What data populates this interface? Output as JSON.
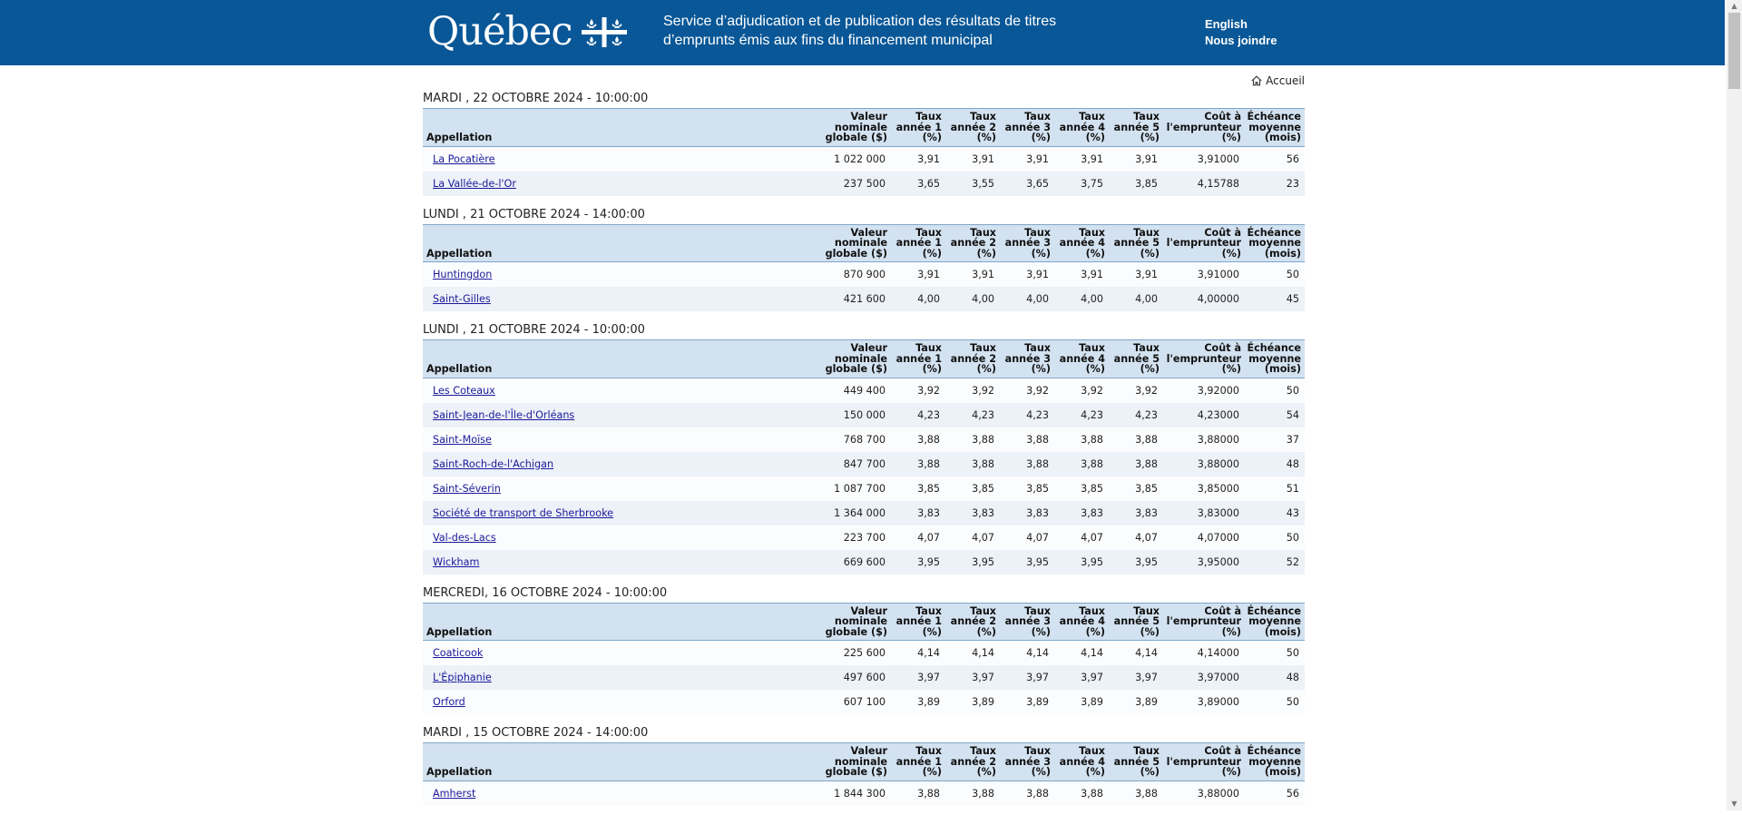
{
  "header": {
    "logo_text": "Québec",
    "service_title": "Service d’adjudication et de publication des résultats de titres d’emprunts émis aux fins du financement municipal",
    "lang_link": "English",
    "contact_link": "Nous joindre"
  },
  "nav": {
    "home": "Accueil"
  },
  "columns": [
    {
      "label": "Appellation"
    },
    {
      "label": "Valeur nominale globale ($)"
    },
    {
      "label": "Taux année 1 (%)"
    },
    {
      "label": "Taux année 2 (%)"
    },
    {
      "label": "Taux année 3 (%)"
    },
    {
      "label": "Taux année 4 (%)"
    },
    {
      "label": "Taux année 5 (%)"
    },
    {
      "label": "Coût à l'emprunteur (%)"
    },
    {
      "label": "Échéance moyenne (mois)"
    }
  ],
  "sections": [
    {
      "title": "MARDI , 22 OCTOBRE 2024 - 10:00:00",
      "rows": [
        {
          "name": "La Pocatière",
          "cells": [
            "1 022 000",
            "3,91",
            "3,91",
            "3,91",
            "3,91",
            "3,91",
            "3,91000",
            "56"
          ]
        },
        {
          "name": "La Vallée-de-l'Or",
          "cells": [
            "237 500",
            "3,65",
            "3,55",
            "3,65",
            "3,75",
            "3,85",
            "4,15788",
            "23"
          ]
        }
      ]
    },
    {
      "title": "LUNDI , 21 OCTOBRE 2024 - 14:00:00",
      "rows": [
        {
          "name": "Huntingdon",
          "cells": [
            "870 900",
            "3,91",
            "3,91",
            "3,91",
            "3,91",
            "3,91",
            "3,91000",
            "50"
          ]
        },
        {
          "name": "Saint-Gilles",
          "cells": [
            "421 600",
            "4,00",
            "4,00",
            "4,00",
            "4,00",
            "4,00",
            "4,00000",
            "45"
          ]
        }
      ]
    },
    {
      "title": "LUNDI , 21 OCTOBRE 2024 - 10:00:00",
      "rows": [
        {
          "name": "Les Coteaux",
          "cells": [
            "449 400",
            "3,92",
            "3,92",
            "3,92",
            "3,92",
            "3,92",
            "3,92000",
            "50"
          ]
        },
        {
          "name": "Saint-Jean-de-l'Île-d'Orléans",
          "cells": [
            "150 000",
            "4,23",
            "4,23",
            "4,23",
            "4,23",
            "4,23",
            "4,23000",
            "54"
          ]
        },
        {
          "name": "Saint-Moïse",
          "cells": [
            "768 700",
            "3,88",
            "3,88",
            "3,88",
            "3,88",
            "3,88",
            "3,88000",
            "37"
          ]
        },
        {
          "name": "Saint-Roch-de-l'Achigan",
          "cells": [
            "847 700",
            "3,88",
            "3,88",
            "3,88",
            "3,88",
            "3,88",
            "3,88000",
            "48"
          ]
        },
        {
          "name": "Saint-Séverin",
          "cells": [
            "1 087 700",
            "3,85",
            "3,85",
            "3,85",
            "3,85",
            "3,85",
            "3,85000",
            "51"
          ]
        },
        {
          "name": "Société de transport de Sherbrooke",
          "cells": [
            "1 364 000",
            "3,83",
            "3,83",
            "3,83",
            "3,83",
            "3,83",
            "3,83000",
            "43"
          ]
        },
        {
          "name": "Val-des-Lacs",
          "cells": [
            "223 700",
            "4,07",
            "4,07",
            "4,07",
            "4,07",
            "4,07",
            "4,07000",
            "50"
          ]
        },
        {
          "name": "Wickham",
          "cells": [
            "669 600",
            "3,95",
            "3,95",
            "3,95",
            "3,95",
            "3,95",
            "3,95000",
            "52"
          ]
        }
      ]
    },
    {
      "title": "MERCREDI, 16 OCTOBRE 2024 - 10:00:00",
      "rows": [
        {
          "name": "Coaticook",
          "cells": [
            "225 600",
            "4,14",
            "4,14",
            "4,14",
            "4,14",
            "4,14",
            "4,14000",
            "50"
          ]
        },
        {
          "name": "L'Épiphanie",
          "cells": [
            "497 600",
            "3,97",
            "3,97",
            "3,97",
            "3,97",
            "3,97",
            "3,97000",
            "48"
          ]
        },
        {
          "name": "Orford",
          "cells": [
            "607 100",
            "3,89",
            "3,89",
            "3,89",
            "3,89",
            "3,89",
            "3,89000",
            "50"
          ]
        }
      ]
    },
    {
      "title": "MARDI , 15 OCTOBRE 2024 - 14:00:00",
      "rows": [
        {
          "name": "Amherst",
          "cells": [
            "1 844 300",
            "3,88",
            "3,88",
            "3,88",
            "3,88",
            "3,88",
            "3,88000",
            "56"
          ]
        }
      ]
    }
  ]
}
